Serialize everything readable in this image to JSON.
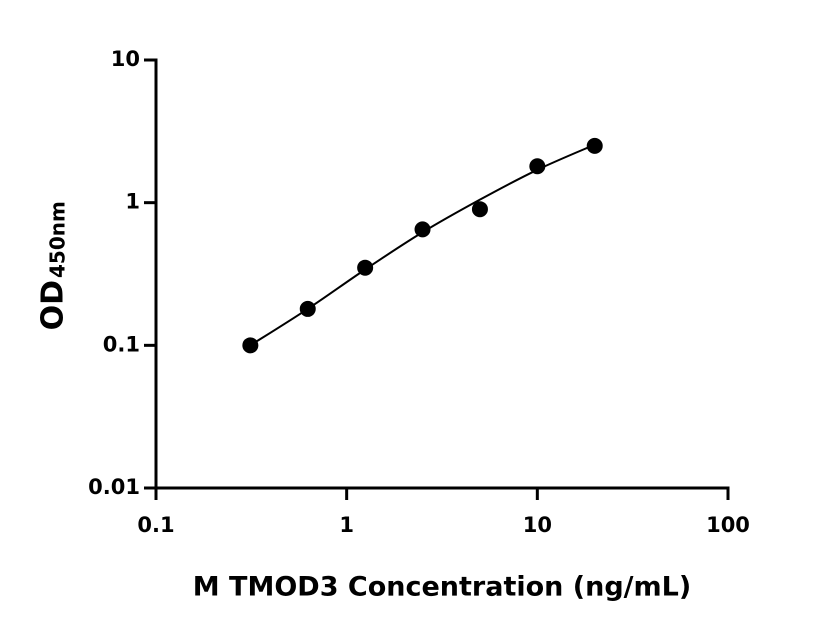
{
  "chart_data": {
    "type": "scatter",
    "xlabel": "M TMOD3 Concentration (ng/mL)",
    "ylabel": "OD",
    "ylabel_sub": "450nm",
    "xscale": "log",
    "yscale": "log",
    "xlim": [
      0.1,
      100
    ],
    "xticks": [
      0.1,
      1,
      10,
      100
    ],
    "ylim": [
      0.01,
      10
    ],
    "yticks": [
      0.01,
      0.1,
      1,
      10
    ],
    "series": [
      {
        "mode": "markers",
        "color": "#000000",
        "x": [
          0.3125,
          0.625,
          1.25,
          2.5,
          5,
          10,
          20
        ],
        "values": [
          0.1,
          0.18,
          0.35,
          0.65,
          0.9,
          1.8,
          2.5
        ]
      },
      {
        "mode": "line",
        "color": "#000000",
        "x": [
          0.3125,
          0.625,
          1.25,
          2.5,
          5,
          10,
          20
        ],
        "values": [
          0.1,
          0.18,
          0.34,
          0.62,
          1.05,
          1.7,
          2.55
        ]
      }
    ]
  }
}
